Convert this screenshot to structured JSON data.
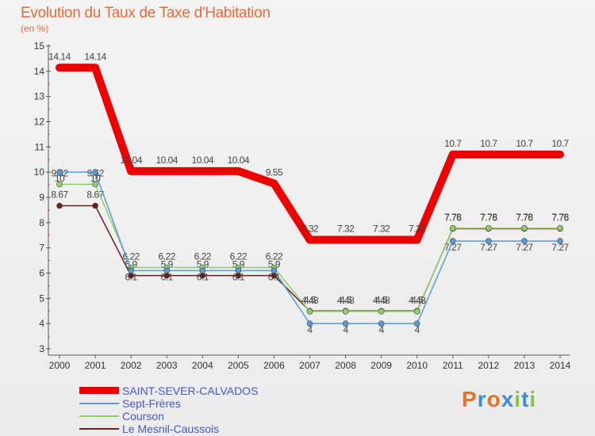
{
  "title": "Evolution du Taux de Taxe d'Habitation",
  "subtitle": "(en %)",
  "logo": {
    "text": "Proxiti",
    "letters": [
      "P",
      "r",
      "o",
      "x",
      "i",
      "t",
      "i"
    ],
    "colors": [
      "#e8702a",
      "#3a8fd8",
      "#e8702a",
      "#3a8fd8",
      "#8ac43f",
      "#3a8fd8",
      "#8ac43f"
    ]
  },
  "chart_data": {
    "type": "line",
    "title": "Evolution du Taux de Taxe d'Habitation",
    "ylabel": "(en %)",
    "xlabel": "",
    "x": [
      "2000",
      "2001",
      "2002",
      "2003",
      "2004",
      "2005",
      "2006",
      "2007",
      "2008",
      "2009",
      "2010",
      "2011",
      "2012",
      "2013",
      "2014"
    ],
    "ylim": [
      3,
      15
    ],
    "yticks": [
      3,
      4,
      5,
      6,
      7,
      8,
      9,
      10,
      11,
      12,
      13,
      14,
      15
    ],
    "grid": false,
    "legend": "bottom-left",
    "series": [
      {
        "name": "SAINT-SEVER-CALVADOS",
        "color": "#ee0000",
        "values": [
          14.14,
          14.14,
          10.04,
          10.04,
          10.04,
          10.04,
          9.55,
          7.32,
          7.32,
          7.32,
          7.32,
          10.7,
          10.7,
          10.7,
          10.7
        ],
        "labels": [
          "14.14",
          "14.14",
          "10.04",
          "10.04",
          "10.04",
          "10.04",
          "9.55",
          "7.32",
          "7.32",
          "7.32",
          "7.32",
          "10.7",
          "10.7",
          "10.7",
          "10.7"
        ]
      },
      {
        "name": "Sept-Frères",
        "color": "#5b9bd5",
        "values": [
          10,
          10,
          6.1,
          6.1,
          6.1,
          6.1,
          6.1,
          4,
          4,
          4,
          4,
          7.27,
          7.27,
          7.27,
          7.27
        ],
        "labels": [
          "10",
          "10",
          "6.1",
          "6.1",
          "6.1",
          "6.1",
          "6.1",
          "4",
          "4",
          "4",
          "4",
          "7.27",
          "7.27",
          "7.27",
          "7.27"
        ]
      },
      {
        "name": "Courson",
        "color": "#8fd06a",
        "values": [
          9.52,
          9.52,
          6.22,
          6.22,
          6.22,
          6.22,
          6.22,
          4.48,
          4.48,
          4.48,
          4.48,
          7.78,
          7.78,
          7.78,
          7.78
        ],
        "labels": [
          "9.52",
          "9.52",
          "6.22",
          "6.22",
          "6.22",
          "6.22",
          "6.22",
          "4.48",
          "4.48",
          "4.48",
          "4.48",
          "7.78",
          "7.78",
          "7.78",
          "7.78"
        ]
      },
      {
        "name": "Le Mesnil-Caussois",
        "color": "#6b1e1e",
        "values": [
          8.67,
          8.67,
          5.9,
          5.9,
          5.9,
          5.9,
          5.9,
          4.5,
          4.5,
          4.5,
          4.5,
          7.76,
          7.76,
          7.76,
          7.76
        ],
        "labels": [
          "8.67",
          "8.67",
          "5.9",
          "5.9",
          "5.9",
          "5.9",
          "5.9",
          "4.5",
          "4.5",
          "4.5",
          "4.5",
          "7.76",
          "7.76",
          "7.76",
          "7.76"
        ]
      }
    ]
  }
}
